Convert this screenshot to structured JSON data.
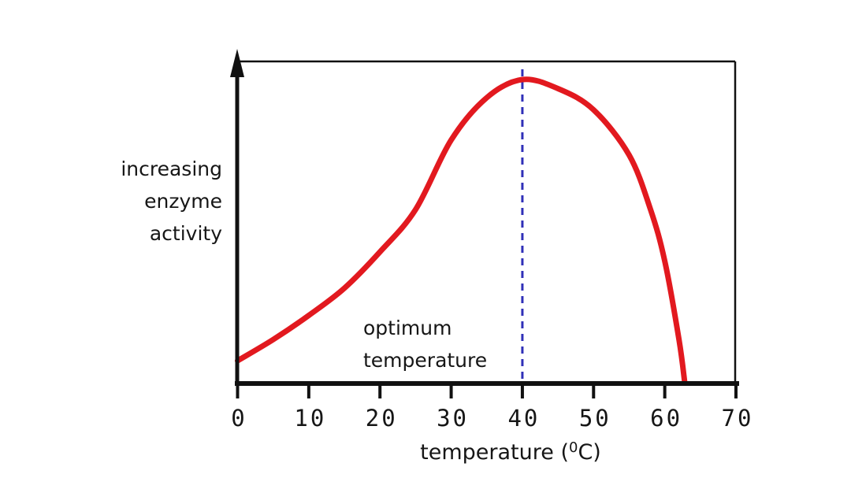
{
  "figure": {
    "background": "#ffffff",
    "ylabel_lines": [
      "increasing",
      "enzyme",
      "activity"
    ],
    "annotation_lines": [
      "optimum",
      "temperature"
    ],
    "xlabel": {
      "prefix": "temperature (",
      "sup": "0",
      "suffix": "C)"
    }
  },
  "colors": {
    "curve": "#e2191f",
    "dashed_line": "#3030b8",
    "axis": "#111111",
    "text": "#161616"
  },
  "chart_data": {
    "type": "line",
    "title": "",
    "xlabel": "temperature (⁰C)",
    "ylabel": "increasing enzyme activity",
    "x_range": [
      0,
      70
    ],
    "x_ticks": [
      0,
      10,
      20,
      30,
      40,
      50,
      60,
      70
    ],
    "y_axis_scale": "relative activity, unlabeled (0 = none, 1 = peak)",
    "grid": false,
    "legend": false,
    "annotation": "optimum temperature",
    "optimum_temperature_c": 40,
    "activity_ceases_at_c": 62.8,
    "reference_line": {
      "x": 40,
      "style": "dashed",
      "color": "#3030b8"
    },
    "series": [
      {
        "name": "enzyme activity",
        "color": "#e2191f",
        "x": [
          0,
          5,
          10,
          15,
          20,
          25,
          30,
          35,
          40,
          45,
          50,
          55,
          58,
          60,
          62,
          62.8
        ],
        "y": [
          0.07,
          0.14,
          0.22,
          0.31,
          0.43,
          0.57,
          0.8,
          0.94,
          1.0,
          0.97,
          0.9,
          0.75,
          0.57,
          0.4,
          0.14,
          0.0
        ]
      }
    ]
  }
}
